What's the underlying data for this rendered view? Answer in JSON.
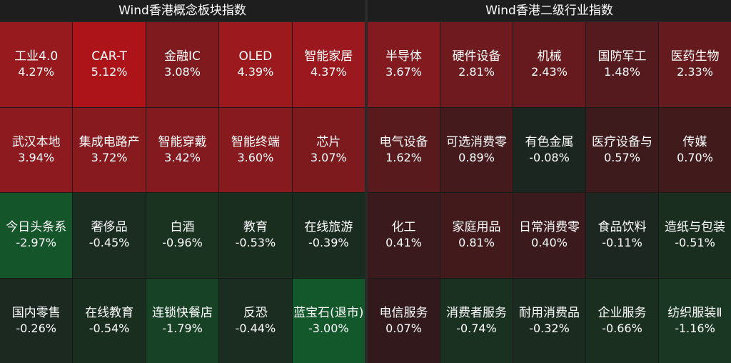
{
  "left_panel": {
    "title": "Wind香港概念板块指数",
    "cells": [
      {
        "name": "工业4.0",
        "change": "4.27%",
        "color": "#971a1f"
      },
      {
        "name": "CAR-T",
        "change": "5.12%",
        "color": "#ad1419"
      },
      {
        "name": "金融IC",
        "change": "3.08%",
        "color": "#7f1a1e"
      },
      {
        "name": "OLED",
        "change": "4.39%",
        "color": "#9c191e"
      },
      {
        "name": "智能家居",
        "change": "4.37%",
        "color": "#9b191e"
      },
      {
        "name": "武汉本地",
        "change": "3.94%",
        "color": "#8c1a1f"
      },
      {
        "name": "集成电路产",
        "change": "3.72%",
        "color": "#871a1f"
      },
      {
        "name": "智能穿戴",
        "change": "3.42%",
        "color": "#821a1f"
      },
      {
        "name": "智能终端",
        "change": "3.60%",
        "color": "#861a1f"
      },
      {
        "name": "芯片",
        "change": "3.07%",
        "color": "#7c1a1e"
      },
      {
        "name": "今日头条系",
        "change": "-2.97%",
        "color": "#14552a"
      },
      {
        "name": "奢侈品",
        "change": "-0.45%",
        "color": "#1a2d20"
      },
      {
        "name": "白酒",
        "change": "-0.96%",
        "color": "#1a3321"
      },
      {
        "name": "教育",
        "change": "-0.53%",
        "color": "#1a2e20"
      },
      {
        "name": "在线旅游",
        "change": "-0.39%",
        "color": "#1a2c20"
      },
      {
        "name": "国内零售",
        "change": "-0.26%",
        "color": "#1b2920"
      },
      {
        "name": "在线教育",
        "change": "-0.54%",
        "color": "#1a2e20"
      },
      {
        "name": "连锁快餐店",
        "change": "-1.79%",
        "color": "#174226"
      },
      {
        "name": "反恐",
        "change": "-0.44%",
        "color": "#1a2d20"
      },
      {
        "name": "蓝宝石(退市)",
        "change": "-3.00%",
        "color": "#13582b"
      }
    ]
  },
  "right_panel": {
    "title": "Wind香港二级行业指数",
    "cells": [
      {
        "name": "半导体",
        "change": "3.67%",
        "color": "#831a1f"
      },
      {
        "name": "硬件设备",
        "change": "2.81%",
        "color": "#6f1a1e"
      },
      {
        "name": "机械",
        "change": "2.43%",
        "color": "#671a1d"
      },
      {
        "name": "国防军工",
        "change": "1.48%",
        "color": "#551a1d"
      },
      {
        "name": "医药生物",
        "change": "2.33%",
        "color": "#651a1d"
      },
      {
        "name": "电气设备",
        "change": "1.62%",
        "color": "#581a1d"
      },
      {
        "name": "可选消费零",
        "change": "0.89%",
        "color": "#451a1c"
      },
      {
        "name": "有色金属",
        "change": "-0.08%",
        "color": "#1c2620"
      },
      {
        "name": "医疗设备与",
        "change": "0.57%",
        "color": "#3d1a1c"
      },
      {
        "name": "传媒",
        "change": "0.70%",
        "color": "#411a1c"
      },
      {
        "name": "化工",
        "change": "0.41%",
        "color": "#3a1a1c"
      },
      {
        "name": "家庭用品",
        "change": "0.81%",
        "color": "#431a1c"
      },
      {
        "name": "日常消费零",
        "change": "0.40%",
        "color": "#3a1a1c"
      },
      {
        "name": "食品饮料",
        "change": "-0.11%",
        "color": "#1b2720"
      },
      {
        "name": "造纸与包装",
        "change": "-0.51%",
        "color": "#1a2e20"
      },
      {
        "name": "电信服务",
        "change": "0.07%",
        "color": "#321a1c"
      },
      {
        "name": "消费者服务",
        "change": "-0.74%",
        "color": "#1a3020"
      },
      {
        "name": "耐用消费品",
        "change": "-0.32%",
        "color": "#1b2b20"
      },
      {
        "name": "企业服务",
        "change": "-0.66%",
        "color": "#1a2f20"
      },
      {
        "name": "纺织服装Ⅱ",
        "change": "-1.16%",
        "color": "#193722"
      }
    ]
  }
}
